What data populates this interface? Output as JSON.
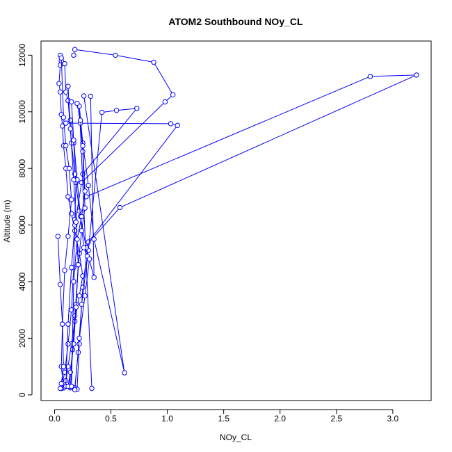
{
  "chart_data": {
    "type": "line",
    "title": "ATOM2 Southbound NOy_CL",
    "xlabel": "NOy_CL",
    "ylabel": "Altitude (m)",
    "xlim": [
      -0.12,
      3.34
    ],
    "ylim": [
      -200,
      12500
    ],
    "xticks": [
      0.0,
      0.5,
      1.0,
      1.5,
      2.0,
      2.5,
      3.0
    ],
    "xtick_labels": [
      "0.0",
      "0.5",
      "1.0",
      "1.5",
      "2.0",
      "2.5",
      "3.0"
    ],
    "yticks": [
      0,
      2000,
      4000,
      6000,
      8000,
      10000,
      12000
    ],
    "ytick_labels": [
      "0",
      "2000",
      "4000",
      "6000",
      "8000",
      "10000",
      "12000"
    ],
    "grid": false,
    "legend": "none",
    "color": "#0000ff",
    "marker": "open-circle",
    "series": [
      {
        "x": [
          0.05,
          0.06,
          0.05,
          0.04,
          0.05,
          0.06,
          0.07,
          0.08,
          0.1,
          0.12,
          0.15,
          0.18,
          0.22,
          0.25,
          0.22,
          0.18,
          0.15,
          0.12,
          0.1,
          0.08
        ],
        "y": [
          12000,
          11800,
          11650,
          11000,
          10700,
          9900,
          9500,
          8800,
          8000,
          7000,
          6400,
          5800,
          5000,
          4200,
          3500,
          2600,
          1800,
          1000,
          500,
          250
        ]
      },
      {
        "x": [
          0.08,
          0.06,
          0.07,
          0.09,
          0.12,
          0.15,
          0.13,
          0.1,
          0.08,
          0.06
        ],
        "y": [
          250,
          1000,
          2500,
          4400,
          5600,
          6900,
          8000,
          8800,
          9800,
          11900
        ]
      },
      {
        "x": [
          0.06,
          0.09,
          0.12,
          0.15,
          0.17,
          0.18,
          0.19,
          0.17,
          0.14,
          0.12,
          0.1,
          0.09
        ],
        "y": [
          230,
          800,
          1800,
          3000,
          4500,
          6200,
          7500,
          8900,
          9700,
          10400,
          10700,
          11700
        ]
      },
      {
        "x": [
          0.17,
          0.18,
          0.54,
          0.88,
          1.05,
          0.98,
          0.24,
          0.18,
          0.15,
          0.12,
          0.1
        ],
        "y": [
          12000,
          12200,
          12000,
          11750,
          10600,
          10350,
          7500,
          6000,
          4500,
          2500,
          300
        ]
      },
      {
        "x": [
          0.28,
          2.8,
          3.21,
          0.58,
          0.22,
          0.18,
          0.14
        ],
        "y": [
          7000,
          11250,
          11300,
          6620,
          5000,
          2800,
          250
        ]
      },
      {
        "x": [
          0.1,
          1.03,
          1.09,
          0.3,
          0.25,
          0.22,
          0.2
        ],
        "y": [
          9600,
          9580,
          9520,
          5400,
          3800,
          1800,
          200
        ]
      },
      {
        "x": [
          0.25,
          0.73,
          0.55,
          0.42,
          0.3,
          0.24,
          0.21,
          0.18
        ],
        "y": [
          7800,
          10120,
          10050,
          9980,
          5100,
          3200,
          1500,
          250
        ]
      },
      {
        "x": [
          0.03,
          0.05,
          0.07,
          0.08,
          0.06,
          0.05
        ],
        "y": [
          5600,
          3900,
          2500,
          1000,
          400,
          230
        ]
      },
      {
        "x": [
          0.32,
          0.35,
          0.28,
          0.22,
          0.18,
          0.15,
          0.12
        ],
        "y": [
          10550,
          4150,
          5200,
          6500,
          7800,
          8900,
          10400
        ]
      },
      {
        "x": [
          0.26,
          0.62,
          0.35,
          0.3,
          0.25,
          0.22,
          0.33
        ],
        "y": [
          10560,
          780,
          5500,
          7400,
          8900,
          10200,
          230
        ]
      },
      {
        "x": [
          0.15,
          0.17,
          0.2,
          0.23,
          0.26,
          0.29,
          0.31,
          0.27,
          0.22,
          0.18
        ],
        "y": [
          10350,
          9000,
          7600,
          6300,
          5200,
          4900,
          4800,
          3500,
          2000,
          180
        ]
      },
      {
        "x": [
          0.2,
          0.23,
          0.25,
          0.27,
          0.24,
          0.21,
          0.19,
          0.16,
          0.13
        ],
        "y": [
          10300,
          9600,
          8600,
          6600,
          5800,
          4600,
          3200,
          1600,
          280
        ]
      },
      {
        "x": [
          0.12,
          0.14,
          0.17,
          0.19,
          0.21,
          0.19,
          0.17,
          0.14,
          0.12
        ],
        "y": [
          10900,
          9400,
          7600,
          6100,
          4600,
          3100,
          1800,
          800,
          300
        ]
      },
      {
        "x": [
          0.23,
          0.25,
          0.27,
          0.24,
          0.2,
          0.17,
          0.15
        ],
        "y": [
          9700,
          8800,
          7200,
          6300,
          5500,
          4000,
          300
        ]
      }
    ]
  }
}
